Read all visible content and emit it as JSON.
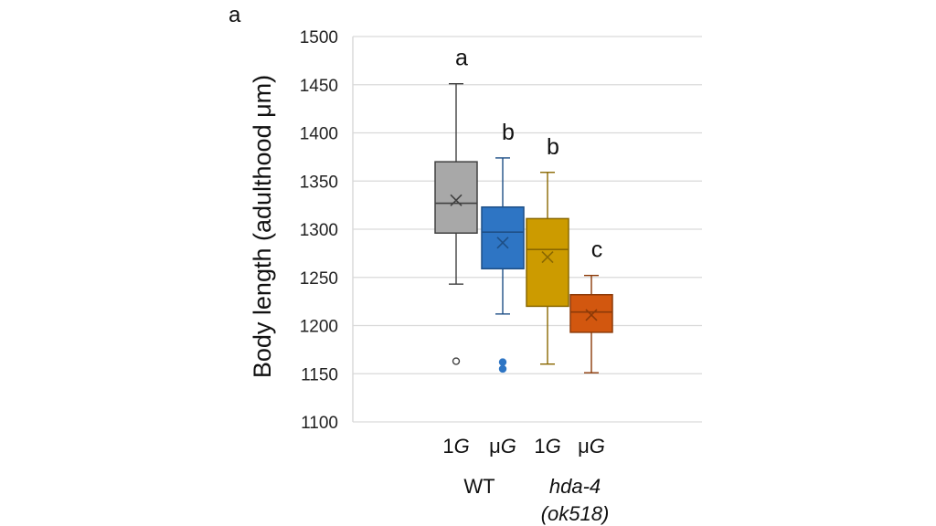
{
  "chart_data": {
    "type": "box",
    "panel_label": "a",
    "ylabel": "Body length (adulthood  μm)",
    "ylim": [
      1100,
      1500
    ],
    "yticks": [
      1100,
      1150,
      1200,
      1250,
      1300,
      1350,
      1400,
      1450,
      1500
    ],
    "grid": true,
    "groups": [
      {
        "name": "WT",
        "name_lines": [
          "WT"
        ],
        "italic": false
      },
      {
        "name": "hda-4 (ok518)",
        "name_lines": [
          "hda-4",
          "(ok518)"
        ],
        "italic": true
      }
    ],
    "series": [
      {
        "group": 0,
        "category_prefix": "1",
        "category_letter": "G",
        "color": "#a8a8a8",
        "stroke": "#404040",
        "whisker_low": 1243,
        "q1": 1296,
        "median": 1327,
        "q3": 1370,
        "whisker_high": 1451,
        "mean": 1330,
        "outliers": [
          1163
        ],
        "outlier_filled": false,
        "significance": "a"
      },
      {
        "group": 0,
        "category_prefix": "μ",
        "category_letter": "G",
        "color": "#2e75c4",
        "stroke": "#1e4f86",
        "whisker_low": 1212,
        "q1": 1259,
        "median": 1297,
        "q3": 1323,
        "whisker_high": 1374,
        "mean": 1286,
        "outliers": [
          1162,
          1155
        ],
        "outlier_filled": true,
        "significance": "b"
      },
      {
        "group": 1,
        "category_prefix": "1",
        "category_letter": "G",
        "color": "#cc9b00",
        "stroke": "#8a6800",
        "whisker_low": 1160,
        "q1": 1220,
        "median": 1279,
        "q3": 1311,
        "whisker_high": 1359,
        "mean": 1271,
        "outliers": [],
        "outlier_filled": false,
        "significance": "b"
      },
      {
        "group": 1,
        "category_prefix": "μ",
        "category_letter": "G",
        "color": "#d2570f",
        "stroke": "#8c3a08",
        "whisker_low": 1151,
        "q1": 1193,
        "median": 1214,
        "q3": 1232,
        "whisker_high": 1252,
        "mean": 1211,
        "outliers": [],
        "outlier_filled": false,
        "significance": "c"
      }
    ]
  }
}
